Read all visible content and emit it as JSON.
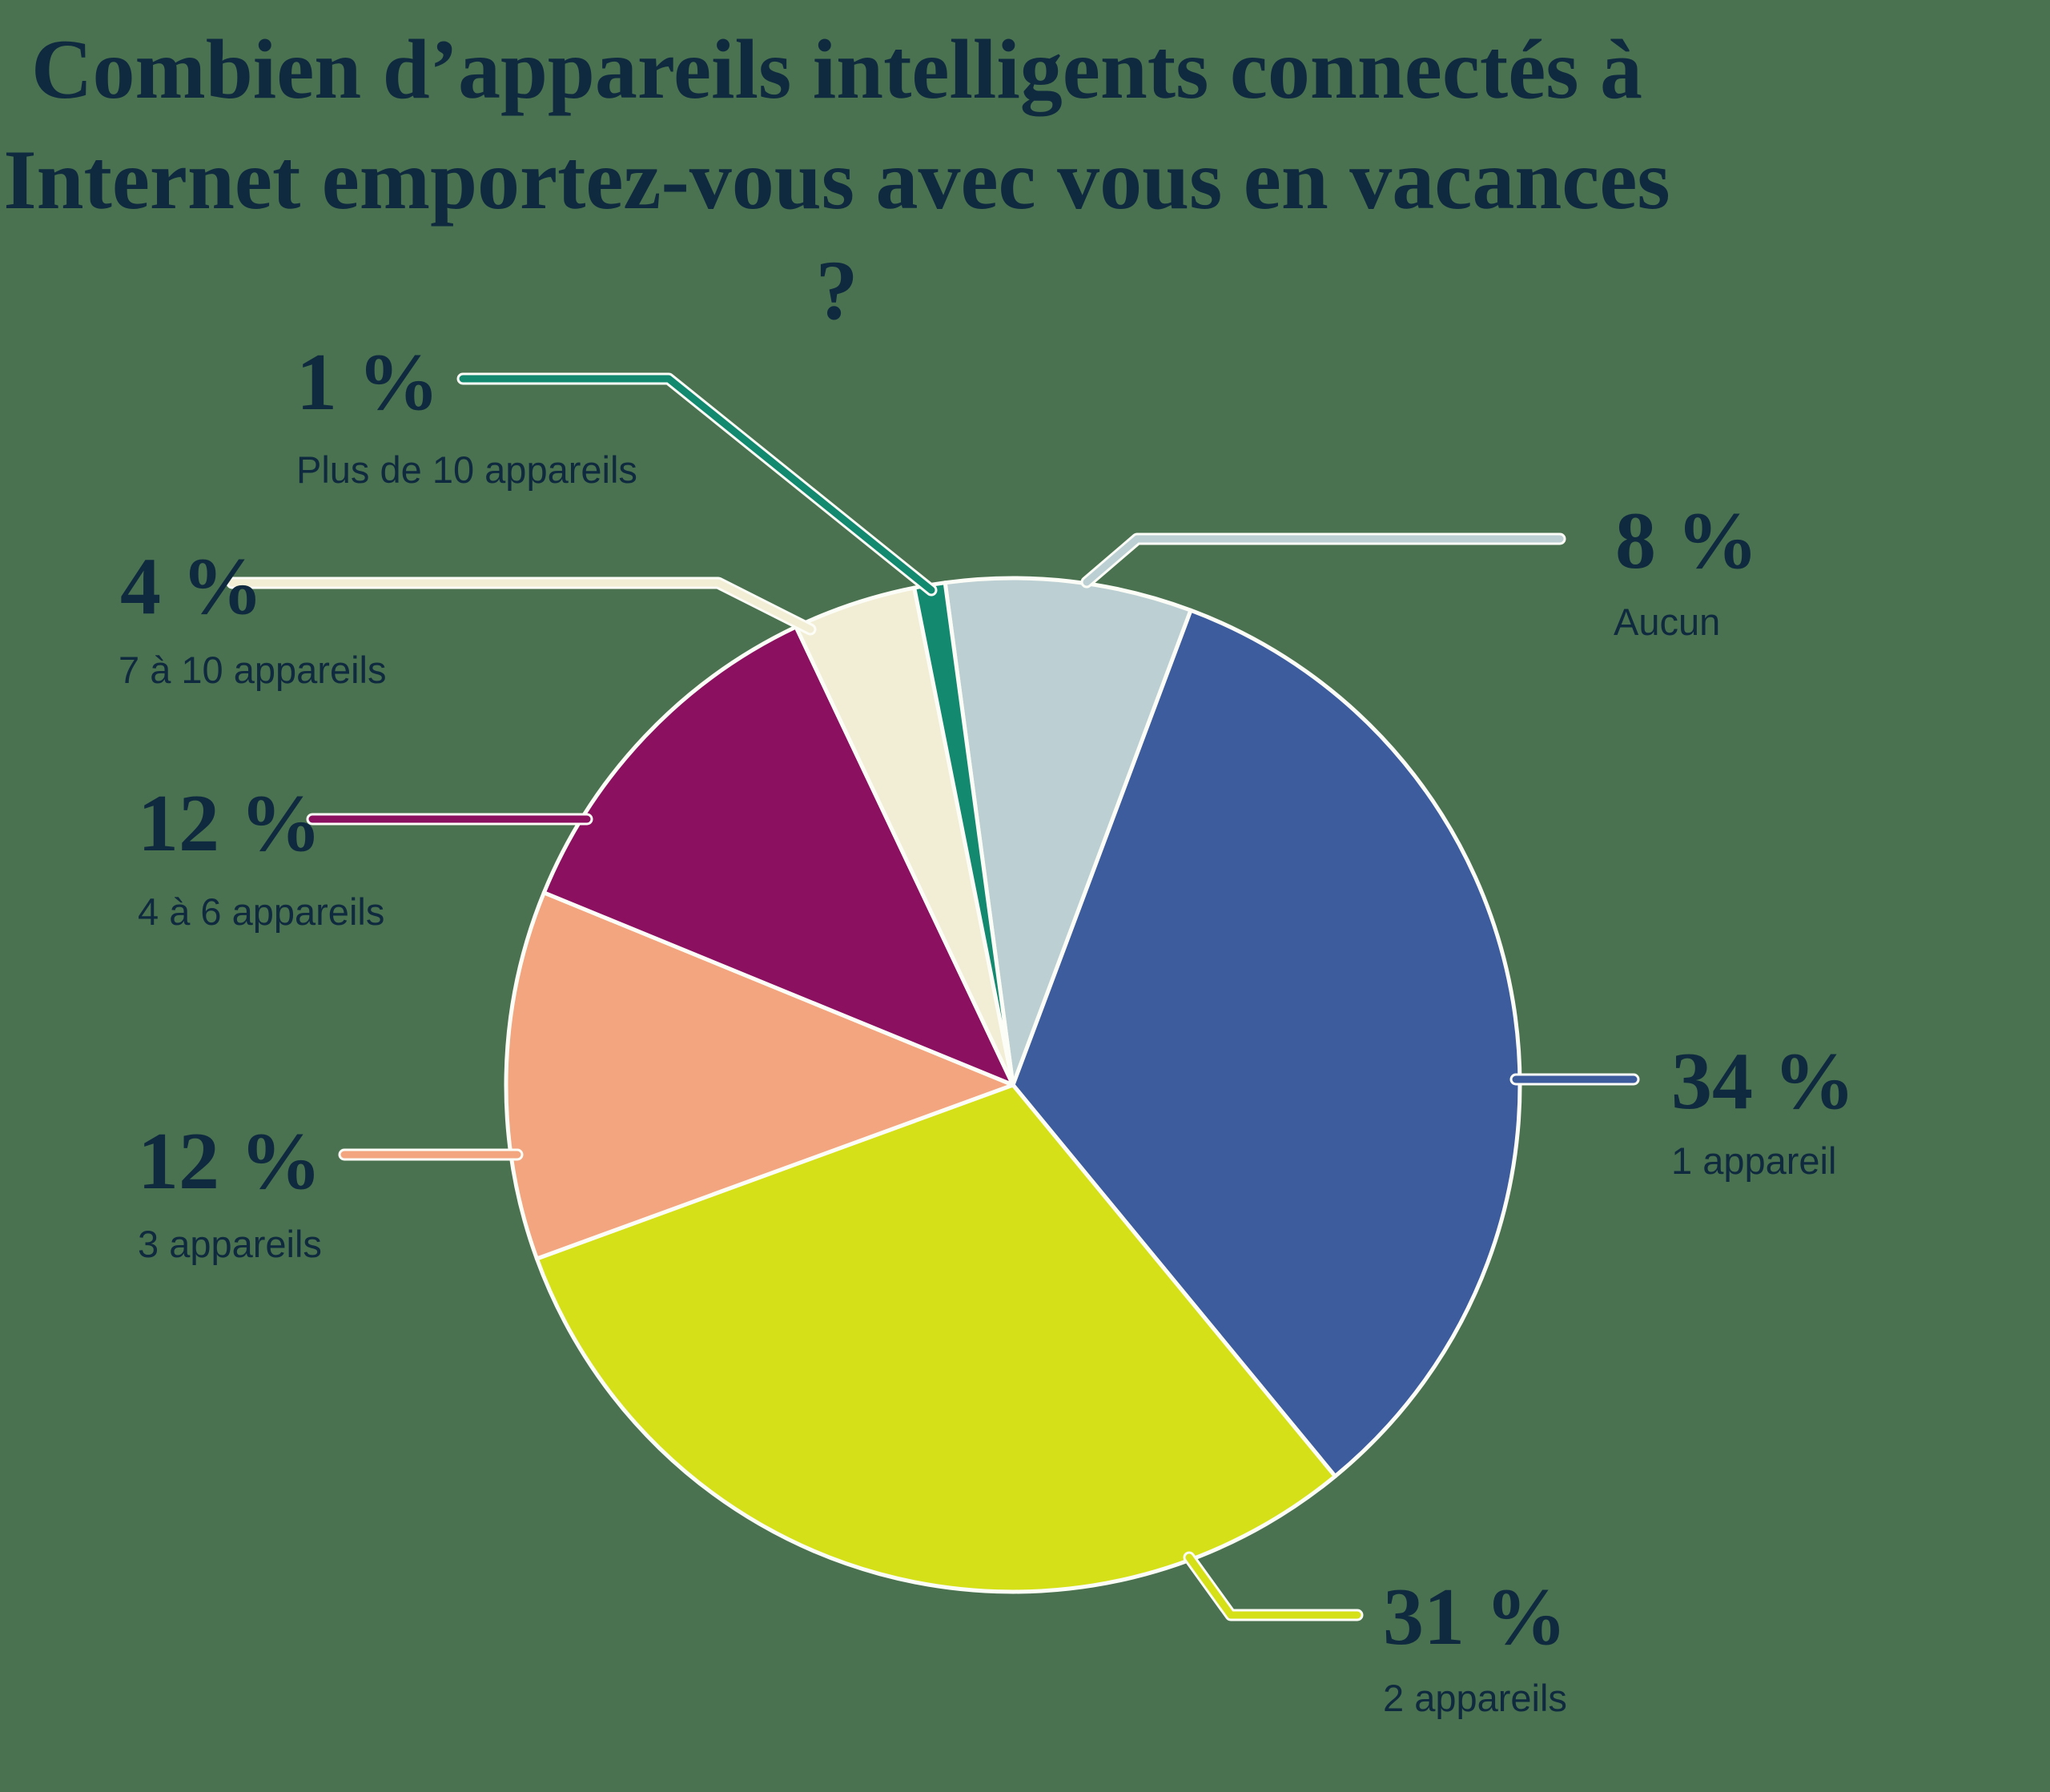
{
  "title": "Combien d’appareils intelligents connectés à\nInternet emportez-vous avec vous en vacances ?",
  "chart_data": {
    "type": "pie",
    "title": "Combien d’appareils intelligents connectés à Internet emportez-vous avec vous en vacances ?",
    "unit": "%",
    "categories": [
      "Aucun",
      "1 appareil",
      "2 appareils",
      "3 appareils",
      "4 à 6 appareils",
      "7 à 10 appareils",
      "Plus de 10 appareils"
    ],
    "values": [
      8,
      34,
      31,
      12,
      12,
      4,
      1
    ],
    "slices": [
      {
        "category": "Aucun",
        "value": 8,
        "value_label": "8 %",
        "color": "#BCD0D4"
      },
      {
        "category": "1 appareil",
        "value": 34,
        "value_label": "34 %",
        "color": "#3D5C9E"
      },
      {
        "category": "2 appareils",
        "value": 31,
        "value_label": "31 %",
        "color": "#D5E018"
      },
      {
        "category": "3 appareils",
        "value": 12,
        "value_label": "12 %",
        "color": "#F2A57E"
      },
      {
        "category": "4 à 6 appareils",
        "value": 12,
        "value_label": "12 %",
        "color": "#8C1060"
      },
      {
        "category": "7 à 10 appareils",
        "value": 4,
        "value_label": "4 %",
        "color": "#F2EDD5"
      },
      {
        "category": "Plus de 10 appareils",
        "value": 1,
        "value_label": "1 %",
        "color": "#13896F"
      }
    ],
    "colors": {
      "background": "#4A7250",
      "text": "#0F2A3F",
      "separator": "#FDFDF7"
    },
    "legend_position": "callout-labels",
    "start_angle_deg": 352.3
  }
}
